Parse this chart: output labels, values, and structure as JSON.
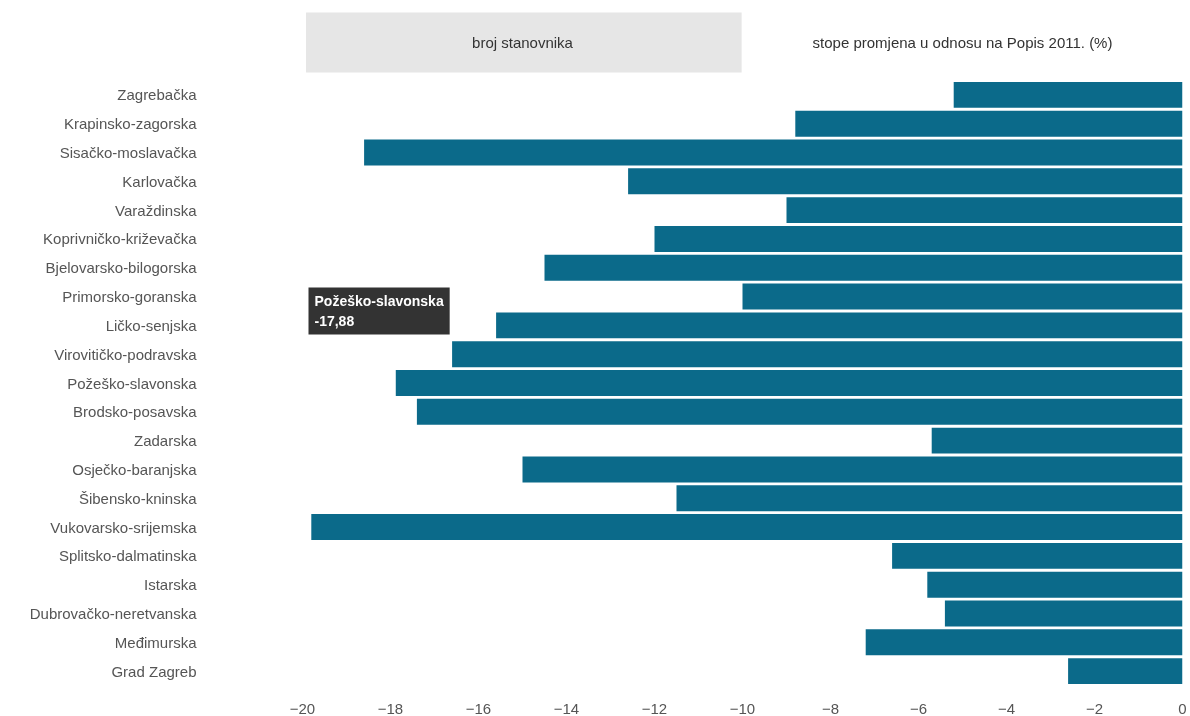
{
  "chart_data": {
    "type": "bar",
    "orientation": "horizontal",
    "categories": [
      "Zagrebačka",
      "Krapinsko-zagorska",
      "Sisačko-moslavačka",
      "Karlovačka",
      "Varaždinska",
      "Koprivničko-križevačka",
      "Bjelovarsko-bilogorska",
      "Primorsko-goranska",
      "Ličko-senjska",
      "Virovitičko-podravska",
      "Požeško-slavonska",
      "Brodsko-posavska",
      "Zadarska",
      "Osječko-baranjska",
      "Šibensko-kninska",
      "Vukovarsko-srijemska",
      "Splitsko-dalmatinska",
      "Istarska",
      "Dubrovačko-neretvanska",
      "Međimurska",
      "Grad Zagreb"
    ],
    "values": [
      -5.2,
      -8.8,
      -18.6,
      -12.6,
      -9.0,
      -12.0,
      -14.5,
      -10.0,
      -15.6,
      -16.6,
      -17.88,
      -17.4,
      -5.7,
      -15.0,
      -11.5,
      -19.8,
      -6.6,
      -5.8,
      -5.4,
      -7.2,
      -2.6
    ],
    "color": "#0b6a8a",
    "xlim": [
      -20,
      0
    ],
    "xticks": [
      -20,
      -18,
      -16,
      -14,
      -12,
      -10,
      -8,
      -6,
      -4,
      -2,
      0
    ],
    "grid": false,
    "annotations": [
      "broj stanovnika",
      "stope promjena u odnosu na Popis 2011. (%)",
      "Požeško-slavonska\n-17,88"
    ]
  }
}
